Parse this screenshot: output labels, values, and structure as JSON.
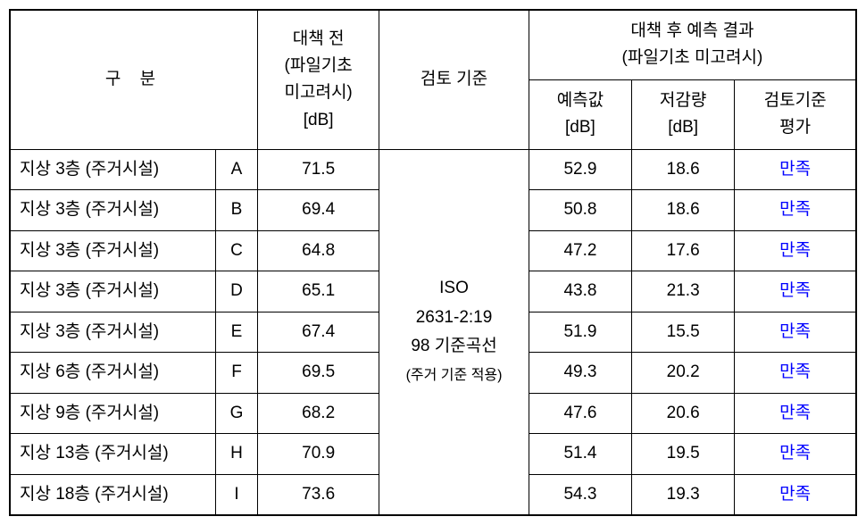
{
  "headers": {
    "category": "구  분",
    "before": "대책 전\n(파일기초\n미고려시)\n[dB]",
    "standard": "검토 기준",
    "after_group": "대책 후 예측 결과\n(파일기초 미고려시)",
    "predict": "예측값\n[dB]",
    "reduce": "저감량\n[dB]",
    "eval": "검토기준\n평가"
  },
  "standard_text": {
    "line1": "ISO",
    "line2": "2631-2:19",
    "line3": "98 기준곡선",
    "line4": "(주거 기준 적용)"
  },
  "rows": [
    {
      "category": "지상 3층 (주거시설)",
      "code": "A",
      "before": "71.5",
      "predict": "52.9",
      "reduce": "18.6",
      "eval": "만족"
    },
    {
      "category": "지상 3층 (주거시설)",
      "code": "B",
      "before": "69.4",
      "predict": "50.8",
      "reduce": "18.6",
      "eval": "만족"
    },
    {
      "category": "지상 3층 (주거시설)",
      "code": "C",
      "before": "64.8",
      "predict": "47.2",
      "reduce": "17.6",
      "eval": "만족"
    },
    {
      "category": "지상 3층 (주거시설)",
      "code": "D",
      "before": "65.1",
      "predict": "43.8",
      "reduce": "21.3",
      "eval": "만족"
    },
    {
      "category": "지상 3층 (주거시설)",
      "code": "E",
      "before": "67.4",
      "predict": "51.9",
      "reduce": "15.5",
      "eval": "만족"
    },
    {
      "category": "지상 6층 (주거시설)",
      "code": "F",
      "before": "69.5",
      "predict": "49.3",
      "reduce": "20.2",
      "eval": "만족"
    },
    {
      "category": "지상 9층 (주거시설)",
      "code": "G",
      "before": "68.2",
      "predict": "47.6",
      "reduce": "20.6",
      "eval": "만족"
    },
    {
      "category": "지상 13층 (주거시설)",
      "code": "H",
      "before": "70.9",
      "predict": "51.4",
      "reduce": "19.5",
      "eval": "만족"
    },
    {
      "category": "지상 18층 (주거시설)",
      "code": "I",
      "before": "73.6",
      "predict": "54.3",
      "reduce": "19.3",
      "eval": "만족"
    }
  ],
  "colors": {
    "border": "#000000",
    "background": "#ffffff",
    "text": "#000000",
    "satisfy": "#0000ff"
  }
}
